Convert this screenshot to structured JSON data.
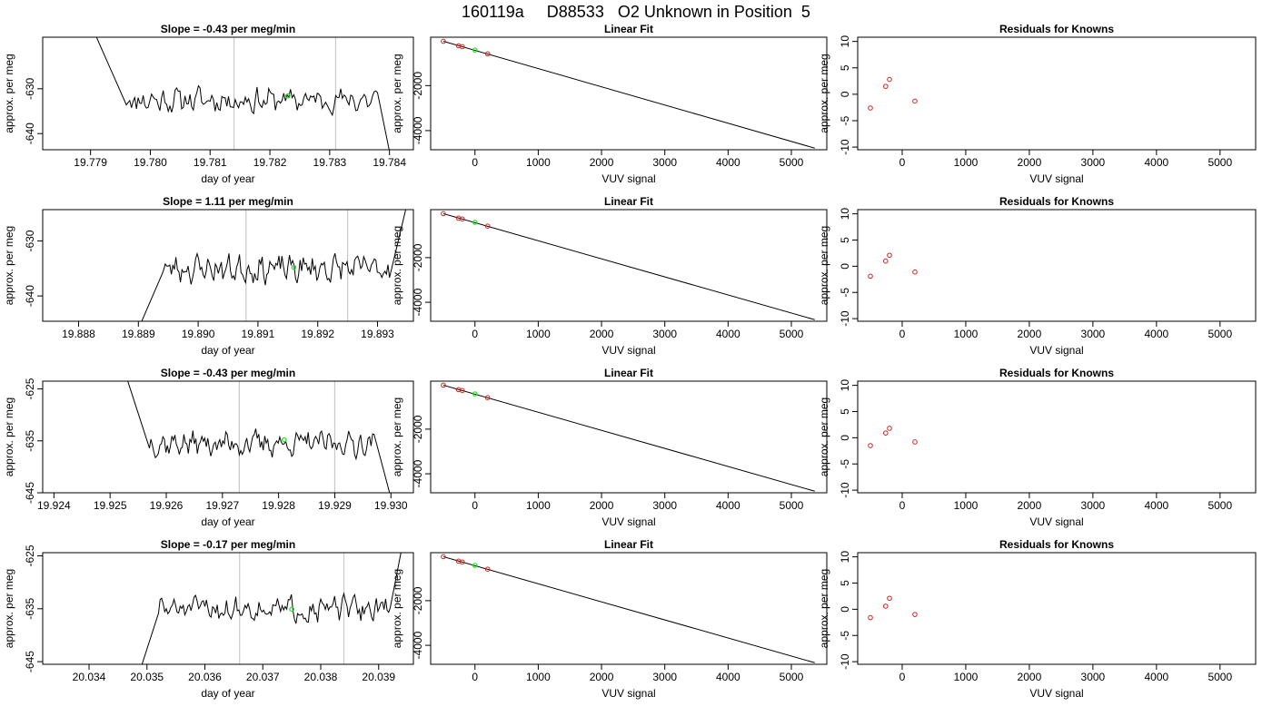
{
  "figure_title": "160119a     D88533   O2 Unknown in Position  5",
  "colors": {
    "trace": "#000000",
    "marker_unknown": "#22dd22",
    "marker_known": "#cc2222",
    "window_line": "#c8c8c8"
  },
  "chart_data": [
    {
      "type": "line",
      "title": "Slope =  -0.43  per meg/min",
      "xlabel": "day of year",
      "ylabel": "approx. per meg",
      "xlim": [
        19.7782,
        19.7844
      ],
      "ylim": [
        -643.6,
        -618.5
      ],
      "xticks": [
        19.779,
        19.78,
        19.781,
        19.782,
        19.783,
        19.784
      ],
      "xtick_labels": [
        "19.779",
        "19.780",
        "19.781",
        "19.782",
        "19.783",
        "19.784"
      ],
      "yticks": [
        -630,
        -640
      ],
      "ytick_labels": [
        "-630",
        "-640"
      ],
      "trace": {
        "x_start": 19.7791,
        "x_plateau": 19.7796,
        "x_drop": 19.7838,
        "x_end": 19.784,
        "level": -632.5,
        "y_start": -618.5,
        "y_end": -644.0,
        "amp": 2.8,
        "seed": 11
      },
      "window_lines_x": [
        19.7814,
        19.7831
      ],
      "unknown_marker": {
        "x": 19.7823,
        "y": -631.6
      },
      "grid": false
    },
    {
      "type": "scatter",
      "title": "Linear Fit",
      "xlabel": "VUV signal",
      "ylabel": "approx. per meg",
      "xlim": [
        -700,
        5560
      ],
      "ylim": [
        -4850,
        150
      ],
      "xticks": [
        0,
        1000,
        2000,
        3000,
        4000,
        5000
      ],
      "xtick_labels": [
        "0",
        "1000",
        "2000",
        "3000",
        "4000",
        "5000"
      ],
      "yticks": [
        -2000,
        -4000
      ],
      "ytick_labels": [
        "-2000",
        "-4000"
      ],
      "fit_line": {
        "x0": -500,
        "y0": -30,
        "x1": 5370,
        "y1": -4780
      },
      "knowns": [
        {
          "x": -500,
          "y": -30
        },
        {
          "x": -260,
          "y": -230
        },
        {
          "x": -200,
          "y": -270
        },
        {
          "x": 200,
          "y": -590
        }
      ],
      "unknown": {
        "x": 0,
        "y": -420
      },
      "grid": false
    },
    {
      "type": "scatter",
      "title": "Residuals for Knowns",
      "xlabel": "VUV signal",
      "ylabel": "approx. per meg",
      "xlim": [
        -700,
        5560
      ],
      "ylim": [
        -10.5,
        10.8
      ],
      "xticks": [
        0,
        1000,
        2000,
        3000,
        4000,
        5000
      ],
      "xtick_labels": [
        "0",
        "1000",
        "2000",
        "3000",
        "4000",
        "5000"
      ],
      "yticks": [
        10,
        5,
        0,
        -5,
        -10
      ],
      "ytick_labels": [
        "10",
        "5",
        "0",
        "-5",
        "-10"
      ],
      "knowns": [
        {
          "x": -500,
          "y": -2.6
        },
        {
          "x": -260,
          "y": 1.5
        },
        {
          "x": -200,
          "y": 2.8
        },
        {
          "x": 200,
          "y": -1.3
        }
      ],
      "grid": false
    },
    {
      "type": "line",
      "title": "Slope =  1.11  per meg/min",
      "xlabel": "day of year",
      "ylabel": "approx. per meg",
      "xlim": [
        19.8874,
        19.8936
      ],
      "ylim": [
        -644.6,
        -624.3
      ],
      "xticks": [
        19.888,
        19.889,
        19.89,
        19.891,
        19.892,
        19.893
      ],
      "xtick_labels": [
        "19.888",
        "19.889",
        "19.890",
        "19.891",
        "19.892",
        "19.893"
      ],
      "yticks": [
        -630,
        -640
      ],
      "ytick_labels": [
        "-630",
        "-640"
      ],
      "trace": {
        "x_start": 19.889,
        "x_plateau": 19.8894,
        "x_drop": 19.8932,
        "x_end": 19.8935,
        "level": -635.0,
        "y_start": -646.0,
        "y_end": -623.0,
        "amp": 2.5,
        "seed": 23
      },
      "window_lines_x": [
        19.8908,
        19.8925
      ],
      "unknown_marker": {
        "x": 19.8916,
        "y": -634.8
      },
      "grid": false
    },
    {
      "type": "scatter",
      "title": "Linear Fit",
      "xlabel": "VUV signal",
      "ylabel": "approx. per meg",
      "xlim": [
        -700,
        5560
      ],
      "ylim": [
        -4850,
        150
      ],
      "xticks": [
        0,
        1000,
        2000,
        3000,
        4000,
        5000
      ],
      "xtick_labels": [
        "0",
        "1000",
        "2000",
        "3000",
        "4000",
        "5000"
      ],
      "yticks": [
        -2000,
        -4000
      ],
      "ytick_labels": [
        "-2000",
        "-4000"
      ],
      "fit_line": {
        "x0": -500,
        "y0": -30,
        "x1": 5370,
        "y1": -4780
      },
      "knowns": [
        {
          "x": -500,
          "y": -30
        },
        {
          "x": -260,
          "y": -230
        },
        {
          "x": -200,
          "y": -270
        },
        {
          "x": 200,
          "y": -590
        }
      ],
      "unknown": {
        "x": 0,
        "y": -420
      },
      "grid": false
    },
    {
      "type": "scatter",
      "title": "Residuals for Knowns",
      "xlabel": "VUV signal",
      "ylabel": "approx. per meg",
      "xlim": [
        -700,
        5560
      ],
      "ylim": [
        -10.5,
        10.8
      ],
      "xticks": [
        0,
        1000,
        2000,
        3000,
        4000,
        5000
      ],
      "xtick_labels": [
        "0",
        "1000",
        "2000",
        "3000",
        "4000",
        "5000"
      ],
      "yticks": [
        10,
        5,
        0,
        -5,
        -10
      ],
      "ytick_labels": [
        "10",
        "5",
        "0",
        "-5",
        "-10"
      ],
      "knowns": [
        {
          "x": -500,
          "y": -1.9
        },
        {
          "x": -260,
          "y": 1.0
        },
        {
          "x": -200,
          "y": 2.1
        },
        {
          "x": 200,
          "y": -1.1
        }
      ],
      "grid": false
    },
    {
      "type": "line",
      "title": "Slope =  -0.43  per meg/min",
      "xlabel": "day of year",
      "ylabel": "approx. per meg",
      "xlim": [
        19.9238,
        19.9304
      ],
      "ylim": [
        -645.0,
        -623.5
      ],
      "xticks": [
        19.924,
        19.925,
        19.926,
        19.927,
        19.928,
        19.929,
        19.93
      ],
      "xtick_labels": [
        "19.924",
        "19.925",
        "19.926",
        "19.927",
        "19.928",
        "19.929",
        "19.930"
      ],
      "yticks": [
        -625,
        -635,
        -645
      ],
      "ytick_labels": [
        "-625",
        "-635",
        "-645"
      ],
      "trace": {
        "x_start": 19.9253,
        "x_plateau": 19.9257,
        "x_drop": 19.9297,
        "x_end": 19.93,
        "level": -635.5,
        "y_start": -623.0,
        "y_end": -646.0,
        "amp": 2.4,
        "seed": 37
      },
      "window_lines_x": [
        19.9273,
        19.929
      ],
      "unknown_marker": {
        "x": 19.9281,
        "y": -634.8
      },
      "grid": false
    },
    {
      "type": "scatter",
      "title": "Linear Fit",
      "xlabel": "VUV signal",
      "ylabel": "approx. per meg",
      "xlim": [
        -700,
        5560
      ],
      "ylim": [
        -4850,
        150
      ],
      "xticks": [
        0,
        1000,
        2000,
        3000,
        4000,
        5000
      ],
      "xtick_labels": [
        "0",
        "1000",
        "2000",
        "3000",
        "4000",
        "5000"
      ],
      "yticks": [
        -2000,
        -4000
      ],
      "ytick_labels": [
        "-2000",
        "-4000"
      ],
      "fit_line": {
        "x0": -500,
        "y0": -30,
        "x1": 5370,
        "y1": -4780
      },
      "knowns": [
        {
          "x": -500,
          "y": -30
        },
        {
          "x": -260,
          "y": -230
        },
        {
          "x": -200,
          "y": -270
        },
        {
          "x": 200,
          "y": -590
        }
      ],
      "unknown": {
        "x": 0,
        "y": -420
      },
      "grid": false
    },
    {
      "type": "scatter",
      "title": "Residuals for Knowns",
      "xlabel": "VUV signal",
      "ylabel": "approx. per meg",
      "xlim": [
        -700,
        5560
      ],
      "ylim": [
        -10.5,
        10.8
      ],
      "xticks": [
        0,
        1000,
        2000,
        3000,
        4000,
        5000
      ],
      "xtick_labels": [
        "0",
        "1000",
        "2000",
        "3000",
        "4000",
        "5000"
      ],
      "yticks": [
        10,
        5,
        0,
        -5,
        -10
      ],
      "ytick_labels": [
        "10",
        "5",
        "0",
        "-5",
        "-10"
      ],
      "knowns": [
        {
          "x": -500,
          "y": -1.5
        },
        {
          "x": -260,
          "y": 0.9
        },
        {
          "x": -200,
          "y": 1.8
        },
        {
          "x": 200,
          "y": -0.8
        }
      ],
      "grid": false
    },
    {
      "type": "line",
      "title": "Slope =  -0.17  per meg/min",
      "xlabel": "day of year",
      "ylabel": "approx. per meg",
      "xlim": [
        20.0332,
        20.0396
      ],
      "ylim": [
        -645.5,
        -624.4
      ],
      "xticks": [
        20.034,
        20.035,
        20.036,
        20.037,
        20.038,
        20.039
      ],
      "xtick_labels": [
        "20.034",
        "20.035",
        "20.036",
        "20.037",
        "20.038",
        "20.039"
      ],
      "yticks": [
        -625,
        -635,
        -645
      ],
      "ytick_labels": [
        "-625",
        "-635",
        "-645"
      ],
      "trace": {
        "x_start": 20.0349,
        "x_plateau": 20.0352,
        "x_drop": 20.0392,
        "x_end": 20.0394,
        "level": -635.0,
        "y_start": -646.0,
        "y_end": -623.5,
        "amp": 2.3,
        "seed": 51
      },
      "window_lines_x": [
        20.0366,
        20.0384
      ],
      "unknown_marker": {
        "x": 20.0375,
        "y": -635.1
      },
      "grid": false
    },
    {
      "type": "scatter",
      "title": "Linear Fit",
      "xlabel": "VUV signal",
      "ylabel": "approx. per meg",
      "xlim": [
        -700,
        5560
      ],
      "ylim": [
        -4850,
        150
      ],
      "xticks": [
        0,
        1000,
        2000,
        3000,
        4000,
        5000
      ],
      "xtick_labels": [
        "0",
        "1000",
        "2000",
        "3000",
        "4000",
        "5000"
      ],
      "yticks": [
        -2000,
        -4000
      ],
      "ytick_labels": [
        "-2000",
        "-4000"
      ],
      "fit_line": {
        "x0": -500,
        "y0": -30,
        "x1": 5370,
        "y1": -4780
      },
      "knowns": [
        {
          "x": -500,
          "y": -30
        },
        {
          "x": -260,
          "y": -230
        },
        {
          "x": -200,
          "y": -270
        },
        {
          "x": 200,
          "y": -590
        }
      ],
      "unknown": {
        "x": 0,
        "y": -420
      },
      "grid": false
    },
    {
      "type": "scatter",
      "title": "Residuals for Knowns",
      "xlabel": "VUV signal",
      "ylabel": "approx. per meg",
      "xlim": [
        -700,
        5560
      ],
      "ylim": [
        -10.5,
        10.8
      ],
      "xticks": [
        0,
        1000,
        2000,
        3000,
        4000,
        5000
      ],
      "xtick_labels": [
        "0",
        "1000",
        "2000",
        "3000",
        "4000",
        "5000"
      ],
      "yticks": [
        10,
        5,
        0,
        -5,
        -10
      ],
      "ytick_labels": [
        "10",
        "5",
        "0",
        "-5",
        "-10"
      ],
      "knowns": [
        {
          "x": -500,
          "y": -1.6
        },
        {
          "x": -260,
          "y": 0.6
        },
        {
          "x": -200,
          "y": 2.1
        },
        {
          "x": 200,
          "y": -1.0
        }
      ],
      "grid": false
    }
  ]
}
